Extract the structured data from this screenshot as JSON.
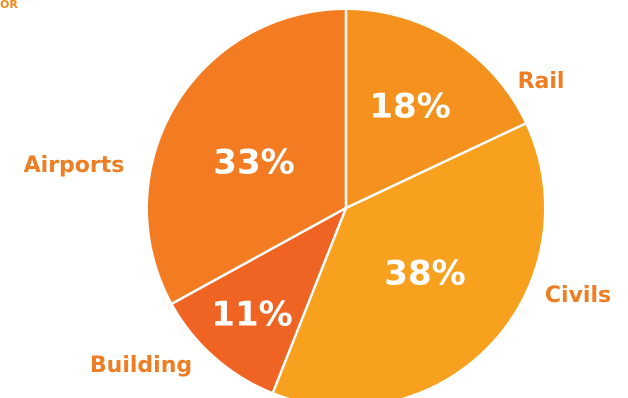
{
  "corner_fragment": "OR",
  "chart_data": {
    "type": "pie",
    "title": "",
    "slices": [
      {
        "label": "Rail",
        "value": 18,
        "display": "18%",
        "color": "#f5921e"
      },
      {
        "label": "Civils",
        "value": 38,
        "display": "38%",
        "color": "#f7a11e"
      },
      {
        "label": "Building",
        "value": 11,
        "display": "11%",
        "color": "#ef6423"
      },
      {
        "label": "Airports",
        "value": 33,
        "display": "33%",
        "color": "#f37c22"
      }
    ],
    "label_color": "#ee7d23",
    "value_label_color": "#ffffff",
    "legend": "none"
  }
}
